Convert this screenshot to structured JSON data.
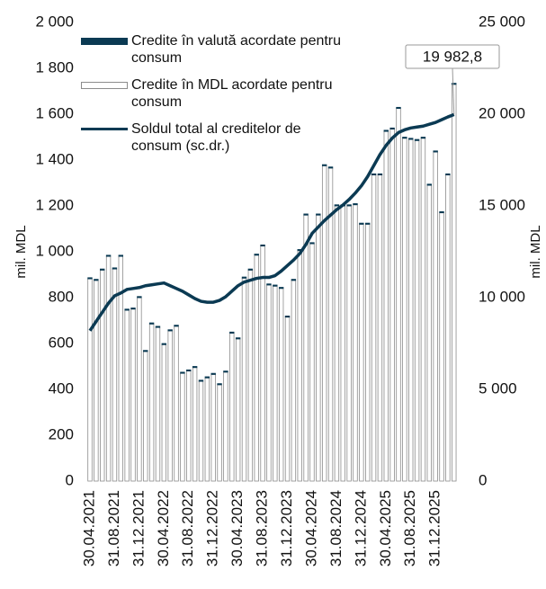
{
  "chart_data": {
    "type": "bar-line",
    "categories": [
      "30.04.2021",
      null,
      null,
      null,
      "31.08.2021",
      null,
      null,
      null,
      "31.12.2021",
      null,
      null,
      null,
      "30.04.2022",
      null,
      null,
      null,
      "31.08.2022",
      null,
      null,
      null,
      "31.12.2022",
      null,
      null,
      null,
      "30.04.2023",
      null,
      null,
      null,
      "31.08.2023",
      null,
      null,
      null,
      "31.12.2023",
      null,
      null,
      null,
      "30.04.2024",
      null,
      null,
      null,
      "31.08.2024",
      null,
      null,
      null,
      "31.12.2024",
      null,
      null,
      null,
      "30.04.2025",
      null,
      null,
      null,
      "31.08.2025",
      null,
      null,
      null,
      "31.12.2025",
      null,
      null,
      null
    ],
    "series": [
      {
        "name": "Credite în valută acordate pentru consum",
        "color": "#0b3a53",
        "kind": "bar",
        "values": [
          5,
          5,
          5,
          5,
          5,
          5,
          5,
          5,
          5,
          5,
          5,
          5,
          5,
          5,
          5,
          5,
          5,
          5,
          5,
          5,
          5,
          5,
          5,
          5,
          5,
          5,
          5,
          5,
          5,
          5,
          5,
          5,
          5,
          5,
          5,
          5,
          5,
          5,
          5,
          5,
          5,
          5,
          5,
          5,
          5,
          5,
          5,
          5,
          5,
          5,
          5,
          5,
          5,
          5,
          5,
          5,
          5,
          5,
          5,
          5
        ]
      },
      {
        "name": "Credite în MDL acordate pentru consum",
        "color": "#ffffff",
        "kind": "bar",
        "values": [
          882,
          875,
          920,
          980,
          925,
          980,
          745,
          750,
          800,
          565,
          685,
          670,
          595,
          655,
          675,
          470,
          480,
          495,
          435,
          450,
          465,
          420,
          475,
          645,
          620,
          885,
          920,
          985,
          1025,
          855,
          850,
          840,
          715,
          875,
          1005,
          1160,
          1035,
          1160,
          1375,
          1365,
          1200,
          1200,
          1200,
          1205,
          1120,
          1120,
          1335,
          1335,
          1525,
          1535,
          1625,
          1495,
          1490,
          1485,
          1495,
          1290,
          1435,
          1170,
          1335,
          1730
        ]
      },
      {
        "name": "Soldul total al creditelor de consum (sc.dr.)",
        "color": "#0b3a53",
        "kind": "line",
        "axis": "y2",
        "values": [
          8200,
          8700,
          9200,
          9700,
          10100,
          10250,
          10450,
          10500,
          10550,
          10650,
          10700,
          10750,
          10800,
          10650,
          10500,
          10350,
          10150,
          9950,
          9800,
          9750,
          9750,
          9850,
          10050,
          10350,
          10650,
          10850,
          10950,
          11050,
          11100,
          11100,
          11200,
          11450,
          11750,
          12050,
          12400,
          12900,
          13500,
          13850,
          14200,
          14500,
          14800,
          15050,
          15350,
          15700,
          16100,
          16600,
          17200,
          17800,
          18300,
          18700,
          19000,
          19150,
          19250,
          19300,
          19350,
          19450,
          19550,
          19700,
          19850,
          19982.8
        ],
        "value_labels": [
          null,
          null,
          null,
          null,
          null,
          null,
          null,
          null,
          null,
          null,
          null,
          null,
          null,
          null,
          null,
          null,
          null,
          null,
          null,
          null,
          null,
          null,
          null,
          null,
          null,
          null,
          null,
          null,
          null,
          null,
          null,
          null,
          null,
          null,
          null,
          null,
          null,
          null,
          null,
          null,
          null,
          null,
          null,
          null,
          null,
          null,
          null,
          null,
          null,
          null,
          null,
          null,
          null,
          null,
          null,
          null,
          null,
          null,
          null,
          "19 982,8"
        ]
      }
    ],
    "ylabel": "mil. MDL",
    "y2label": "mil. MDL",
    "ylim": [
      0,
      2000
    ],
    "yticks": [
      0,
      200,
      400,
      600,
      800,
      {
        "value": 1000,
        "label": "1 000"
      },
      {
        "value": 1200,
        "label": "1 200"
      },
      {
        "value": 1400,
        "label": "1 400"
      },
      {
        "value": 1600,
        "label": "1 600"
      },
      {
        "value": 1800,
        "label": "1 800"
      },
      {
        "value": 2000,
        "label": "2 000"
      }
    ],
    "y2lim": [
      0,
      25000
    ],
    "y2ticks": [
      0,
      {
        "value": 5000,
        "label": "5 000"
      },
      {
        "value": 10000,
        "label": "10 000"
      },
      {
        "value": 15000,
        "label": "15 000"
      },
      {
        "value": 20000,
        "label": "20 000"
      },
      {
        "value": 25000,
        "label": "25 000"
      }
    ],
    "grid": false,
    "legend": "top-left"
  }
}
